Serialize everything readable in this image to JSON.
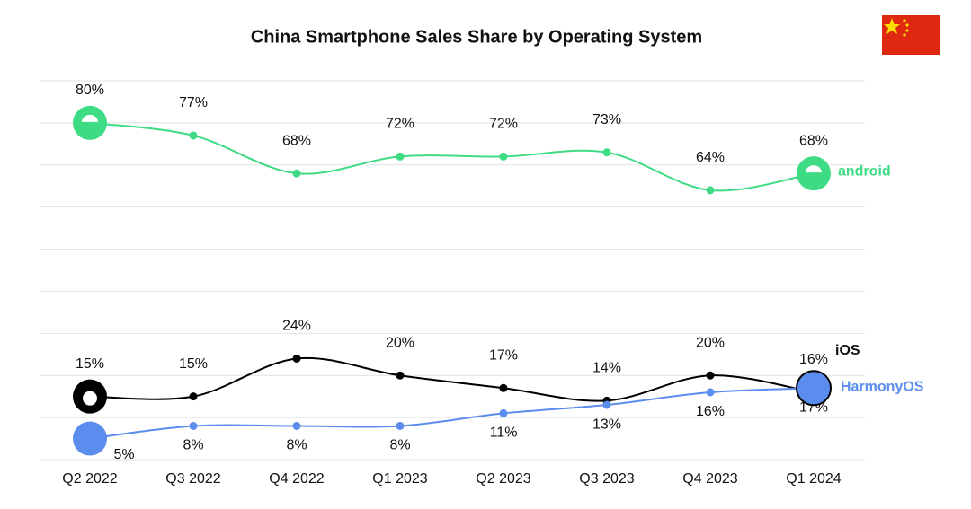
{
  "chart_data": {
    "type": "line",
    "title": "China Smartphone Sales Share by Operating System",
    "categories": [
      "Q2 2022",
      "Q3 2022",
      "Q4 2022",
      "Q1 2023",
      "Q2 2023",
      "Q3 2023",
      "Q4 2023",
      "Q1 2024"
    ],
    "series": [
      {
        "name": "android",
        "color": "#3ddc84",
        "values": [
          80,
          77,
          68,
          72,
          72,
          73,
          64,
          68
        ],
        "value_labels": [
          "80%",
          "77%",
          "68%",
          "72%",
          "72%",
          "73%",
          "64%",
          "68%"
        ],
        "label_side": "above"
      },
      {
        "name": "iOS",
        "color": "#000000",
        "values": [
          15,
          15,
          24,
          20,
          17,
          14,
          20,
          16
        ],
        "value_labels": [
          "15%",
          "15%",
          "24%",
          "20%",
          "17%",
          "14%",
          "20%",
          "16%"
        ],
        "label_side": "above"
      },
      {
        "name": "HarmonyOS",
        "color": "#5b8def",
        "values": [
          5,
          8,
          8,
          8,
          11,
          13,
          16,
          17
        ],
        "value_labels": [
          "5%",
          "8%",
          "8%",
          "8%",
          "11%",
          "13%",
          "16%",
          "17%"
        ],
        "label_side": "below"
      }
    ],
    "ylim": [
      0,
      90
    ],
    "yticks": [
      0,
      10,
      20,
      30,
      40,
      50,
      60,
      70,
      80,
      90
    ],
    "grid": true
  }
}
